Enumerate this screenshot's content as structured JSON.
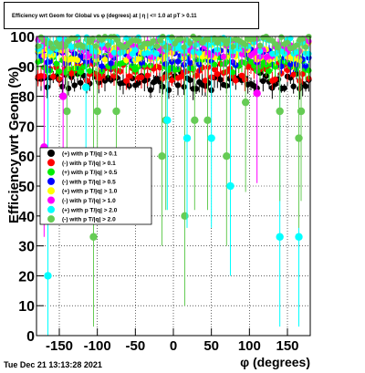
{
  "chart_data": {
    "type": "scatter",
    "title": "Efficiency wrt Geom for Global vs φ (degrees) at | η | <= 1.0 at pT > 0.11",
    "xlabel": "φ (degrees)",
    "ylabel": "Efficiency wrt Geom (%)",
    "xlim": [
      -180,
      180
    ],
    "ylim": [
      0,
      100
    ],
    "xticks": [
      -150,
      -100,
      -50,
      0,
      50,
      100,
      150
    ],
    "yticks": [
      0,
      10,
      20,
      30,
      40,
      50,
      60,
      70,
      80,
      90,
      100
    ],
    "grid": true,
    "legend_position": "left-middle",
    "series": [
      {
        "name": "(+) with p T/|q| > 0.1",
        "color": "#000000",
        "base": 85,
        "spread": 3
      },
      {
        "name": "(-) with p T/|q| > 0.1",
        "color": "#ff0000",
        "base": 88,
        "spread": 3
      },
      {
        "name": "(+) with p T/|q| > 0.5",
        "color": "#00ee00",
        "base": 91,
        "spread": 3
      },
      {
        "name": "(-) with p T/|q| > 0.5",
        "color": "#0000ff",
        "base": 93,
        "spread": 3
      },
      {
        "name": "(+) with p T/|q| > 1.0",
        "color": "#ffff00",
        "base": 95,
        "spread": 3
      },
      {
        "name": "(-) with p T/|q| > 1.0",
        "color": "#ff00ff",
        "base": 96,
        "spread": 3
      },
      {
        "name": "(+) with p T/|q| > 2.0",
        "color": "#00ffff",
        "base": 97,
        "spread": 3
      },
      {
        "name": "(-) with p T/|q| > 2.0",
        "color": "#66cc55",
        "base": 98,
        "spread": 2
      }
    ],
    "outliers": [
      {
        "series": 6,
        "x": -165,
        "y": 20
      },
      {
        "series": 7,
        "x": -140,
        "y": 75
      },
      {
        "series": 5,
        "x": -145,
        "y": 80
      },
      {
        "series": 7,
        "x": -105,
        "y": 33
      },
      {
        "series": 7,
        "x": -100,
        "y": 75
      },
      {
        "series": 6,
        "x": -115,
        "y": 83
      },
      {
        "series": 7,
        "x": -75,
        "y": 75
      },
      {
        "series": 7,
        "x": -15,
        "y": 60
      },
      {
        "series": 7,
        "x": -10,
        "y": 72
      },
      {
        "series": 6,
        "x": -8,
        "y": 72
      },
      {
        "series": 7,
        "x": 15,
        "y": 40
      },
      {
        "series": 6,
        "x": 18,
        "y": 66
      },
      {
        "series": 7,
        "x": 28,
        "y": 72
      },
      {
        "series": 7,
        "x": 45,
        "y": 72
      },
      {
        "series": 6,
        "x": 50,
        "y": 66
      },
      {
        "series": 7,
        "x": 70,
        "y": 60
      },
      {
        "series": 6,
        "x": 75,
        "y": 50
      },
      {
        "series": 7,
        "x": 95,
        "y": 78
      },
      {
        "series": 5,
        "x": 110,
        "y": 81
      },
      {
        "series": 6,
        "x": 140,
        "y": 33
      },
      {
        "series": 7,
        "x": 140,
        "y": 75
      },
      {
        "series": 6,
        "x": 165,
        "y": 33
      },
      {
        "series": 7,
        "x": 165,
        "y": 66
      },
      {
        "series": 7,
        "x": 168,
        "y": 75
      },
      {
        "series": 5,
        "x": -170,
        "y": 63
      }
    ]
  },
  "footer": {
    "timestamp": "Tue Dec 21 13:13:28 2021"
  }
}
